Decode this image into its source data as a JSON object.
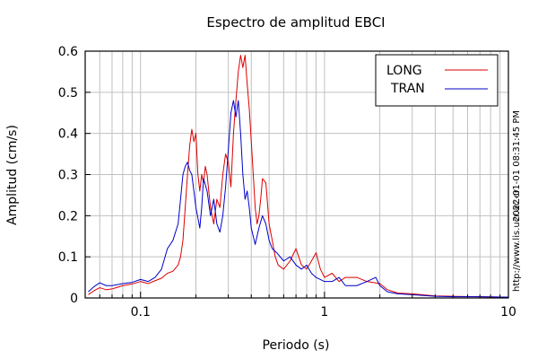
{
  "chart_data": {
    "type": "line",
    "title": "Espectro de amplitud EBCI",
    "xlabel": "Periodo (s)",
    "ylabel": "Amplitud (cm/s)",
    "x_scale": "log",
    "xlim": [
      0.05,
      10
    ],
    "ylim": [
      0,
      0.6
    ],
    "x_ticks": [
      {
        "value": 0.1,
        "label": "0.1"
      },
      {
        "value": 1,
        "label": "1"
      },
      {
        "value": 10,
        "label": "10"
      }
    ],
    "y_ticks": [
      {
        "value": 0,
        "label": "0"
      },
      {
        "value": 0.1,
        "label": "0.1"
      },
      {
        "value": 0.2,
        "label": "0.2"
      },
      {
        "value": 0.3,
        "label": "0.3"
      },
      {
        "value": 0.4,
        "label": "0.4"
      },
      {
        "value": 0.5,
        "label": "0.5"
      },
      {
        "value": 0.6,
        "label": "0.6"
      }
    ],
    "grid": true,
    "legend_position": "top-right",
    "series": [
      {
        "name": "LONG",
        "color": "#dd0000",
        "points": [
          [
            0.052,
            0.008
          ],
          [
            0.056,
            0.018
          ],
          [
            0.06,
            0.025
          ],
          [
            0.065,
            0.02
          ],
          [
            0.07,
            0.022
          ],
          [
            0.08,
            0.03
          ],
          [
            0.09,
            0.034
          ],
          [
            0.1,
            0.04
          ],
          [
            0.11,
            0.035
          ],
          [
            0.12,
            0.042
          ],
          [
            0.13,
            0.048
          ],
          [
            0.14,
            0.06
          ],
          [
            0.15,
            0.065
          ],
          [
            0.16,
            0.08
          ],
          [
            0.165,
            0.1
          ],
          [
            0.17,
            0.14
          ],
          [
            0.175,
            0.22
          ],
          [
            0.18,
            0.3
          ],
          [
            0.185,
            0.37
          ],
          [
            0.19,
            0.41
          ],
          [
            0.195,
            0.38
          ],
          [
            0.2,
            0.4
          ],
          [
            0.205,
            0.3
          ],
          [
            0.21,
            0.26
          ],
          [
            0.215,
            0.3
          ],
          [
            0.22,
            0.28
          ],
          [
            0.225,
            0.32
          ],
          [
            0.23,
            0.3
          ],
          [
            0.24,
            0.22
          ],
          [
            0.25,
            0.18
          ],
          [
            0.26,
            0.24
          ],
          [
            0.27,
            0.22
          ],
          [
            0.28,
            0.3
          ],
          [
            0.29,
            0.35
          ],
          [
            0.3,
            0.33
          ],
          [
            0.31,
            0.27
          ],
          [
            0.32,
            0.4
          ],
          [
            0.33,
            0.48
          ],
          [
            0.34,
            0.55
          ],
          [
            0.35,
            0.59
          ],
          [
            0.36,
            0.56
          ],
          [
            0.37,
            0.59
          ],
          [
            0.38,
            0.52
          ],
          [
            0.39,
            0.46
          ],
          [
            0.4,
            0.38
          ],
          [
            0.41,
            0.3
          ],
          [
            0.42,
            0.22
          ],
          [
            0.43,
            0.18
          ],
          [
            0.44,
            0.2
          ],
          [
            0.45,
            0.24
          ],
          [
            0.46,
            0.29
          ],
          [
            0.48,
            0.28
          ],
          [
            0.5,
            0.18
          ],
          [
            0.52,
            0.14
          ],
          [
            0.54,
            0.1
          ],
          [
            0.56,
            0.08
          ],
          [
            0.6,
            0.07
          ],
          [
            0.65,
            0.09
          ],
          [
            0.7,
            0.12
          ],
          [
            0.75,
            0.08
          ],
          [
            0.8,
            0.07
          ],
          [
            0.85,
            0.09
          ],
          [
            0.9,
            0.11
          ],
          [
            0.95,
            0.07
          ],
          [
            1.0,
            0.05
          ],
          [
            1.1,
            0.06
          ],
          [
            1.2,
            0.04
          ],
          [
            1.3,
            0.05
          ],
          [
            1.5,
            0.05
          ],
          [
            1.7,
            0.04
          ],
          [
            2.0,
            0.035
          ],
          [
            2.2,
            0.02
          ],
          [
            2.5,
            0.012
          ],
          [
            3.0,
            0.01
          ],
          [
            4.0,
            0.005
          ],
          [
            5.0,
            0.004
          ],
          [
            7.0,
            0.003
          ],
          [
            10.0,
            0.002
          ]
        ]
      },
      {
        "name": "TRAN",
        "color": "#0000cc",
        "points": [
          [
            0.052,
            0.015
          ],
          [
            0.056,
            0.028
          ],
          [
            0.06,
            0.037
          ],
          [
            0.065,
            0.03
          ],
          [
            0.07,
            0.03
          ],
          [
            0.08,
            0.035
          ],
          [
            0.09,
            0.038
          ],
          [
            0.1,
            0.045
          ],
          [
            0.11,
            0.04
          ],
          [
            0.12,
            0.05
          ],
          [
            0.13,
            0.07
          ],
          [
            0.14,
            0.12
          ],
          [
            0.15,
            0.14
          ],
          [
            0.16,
            0.18
          ],
          [
            0.165,
            0.24
          ],
          [
            0.17,
            0.3
          ],
          [
            0.175,
            0.32
          ],
          [
            0.18,
            0.33
          ],
          [
            0.185,
            0.31
          ],
          [
            0.19,
            0.3
          ],
          [
            0.195,
            0.26
          ],
          [
            0.2,
            0.22
          ],
          [
            0.21,
            0.17
          ],
          [
            0.215,
            0.22
          ],
          [
            0.22,
            0.29
          ],
          [
            0.23,
            0.26
          ],
          [
            0.24,
            0.2
          ],
          [
            0.25,
            0.24
          ],
          [
            0.26,
            0.18
          ],
          [
            0.27,
            0.16
          ],
          [
            0.28,
            0.2
          ],
          [
            0.29,
            0.27
          ],
          [
            0.3,
            0.36
          ],
          [
            0.31,
            0.45
          ],
          [
            0.32,
            0.48
          ],
          [
            0.33,
            0.44
          ],
          [
            0.34,
            0.48
          ],
          [
            0.35,
            0.4
          ],
          [
            0.36,
            0.3
          ],
          [
            0.37,
            0.24
          ],
          [
            0.38,
            0.26
          ],
          [
            0.39,
            0.22
          ],
          [
            0.4,
            0.17
          ],
          [
            0.42,
            0.13
          ],
          [
            0.44,
            0.17
          ],
          [
            0.46,
            0.2
          ],
          [
            0.48,
            0.18
          ],
          [
            0.5,
            0.14
          ],
          [
            0.52,
            0.12
          ],
          [
            0.55,
            0.11
          ],
          [
            0.6,
            0.09
          ],
          [
            0.65,
            0.1
          ],
          [
            0.7,
            0.08
          ],
          [
            0.75,
            0.07
          ],
          [
            0.8,
            0.08
          ],
          [
            0.85,
            0.06
          ],
          [
            0.9,
            0.05
          ],
          [
            1.0,
            0.04
          ],
          [
            1.1,
            0.04
          ],
          [
            1.2,
            0.05
          ],
          [
            1.3,
            0.03
          ],
          [
            1.5,
            0.03
          ],
          [
            1.7,
            0.04
          ],
          [
            1.9,
            0.05
          ],
          [
            2.0,
            0.03
          ],
          [
            2.2,
            0.015
          ],
          [
            2.5,
            0.01
          ],
          [
            3.0,
            0.008
          ],
          [
            4.0,
            0.004
          ],
          [
            5.0,
            0.003
          ],
          [
            7.0,
            0.003
          ],
          [
            10.0,
            0.002
          ]
        ]
      }
    ]
  },
  "side_labels": {
    "timestamp": "2022-01-01 08:31:45 PM",
    "url": "http://www.lis.ucr.ac.cr"
  }
}
